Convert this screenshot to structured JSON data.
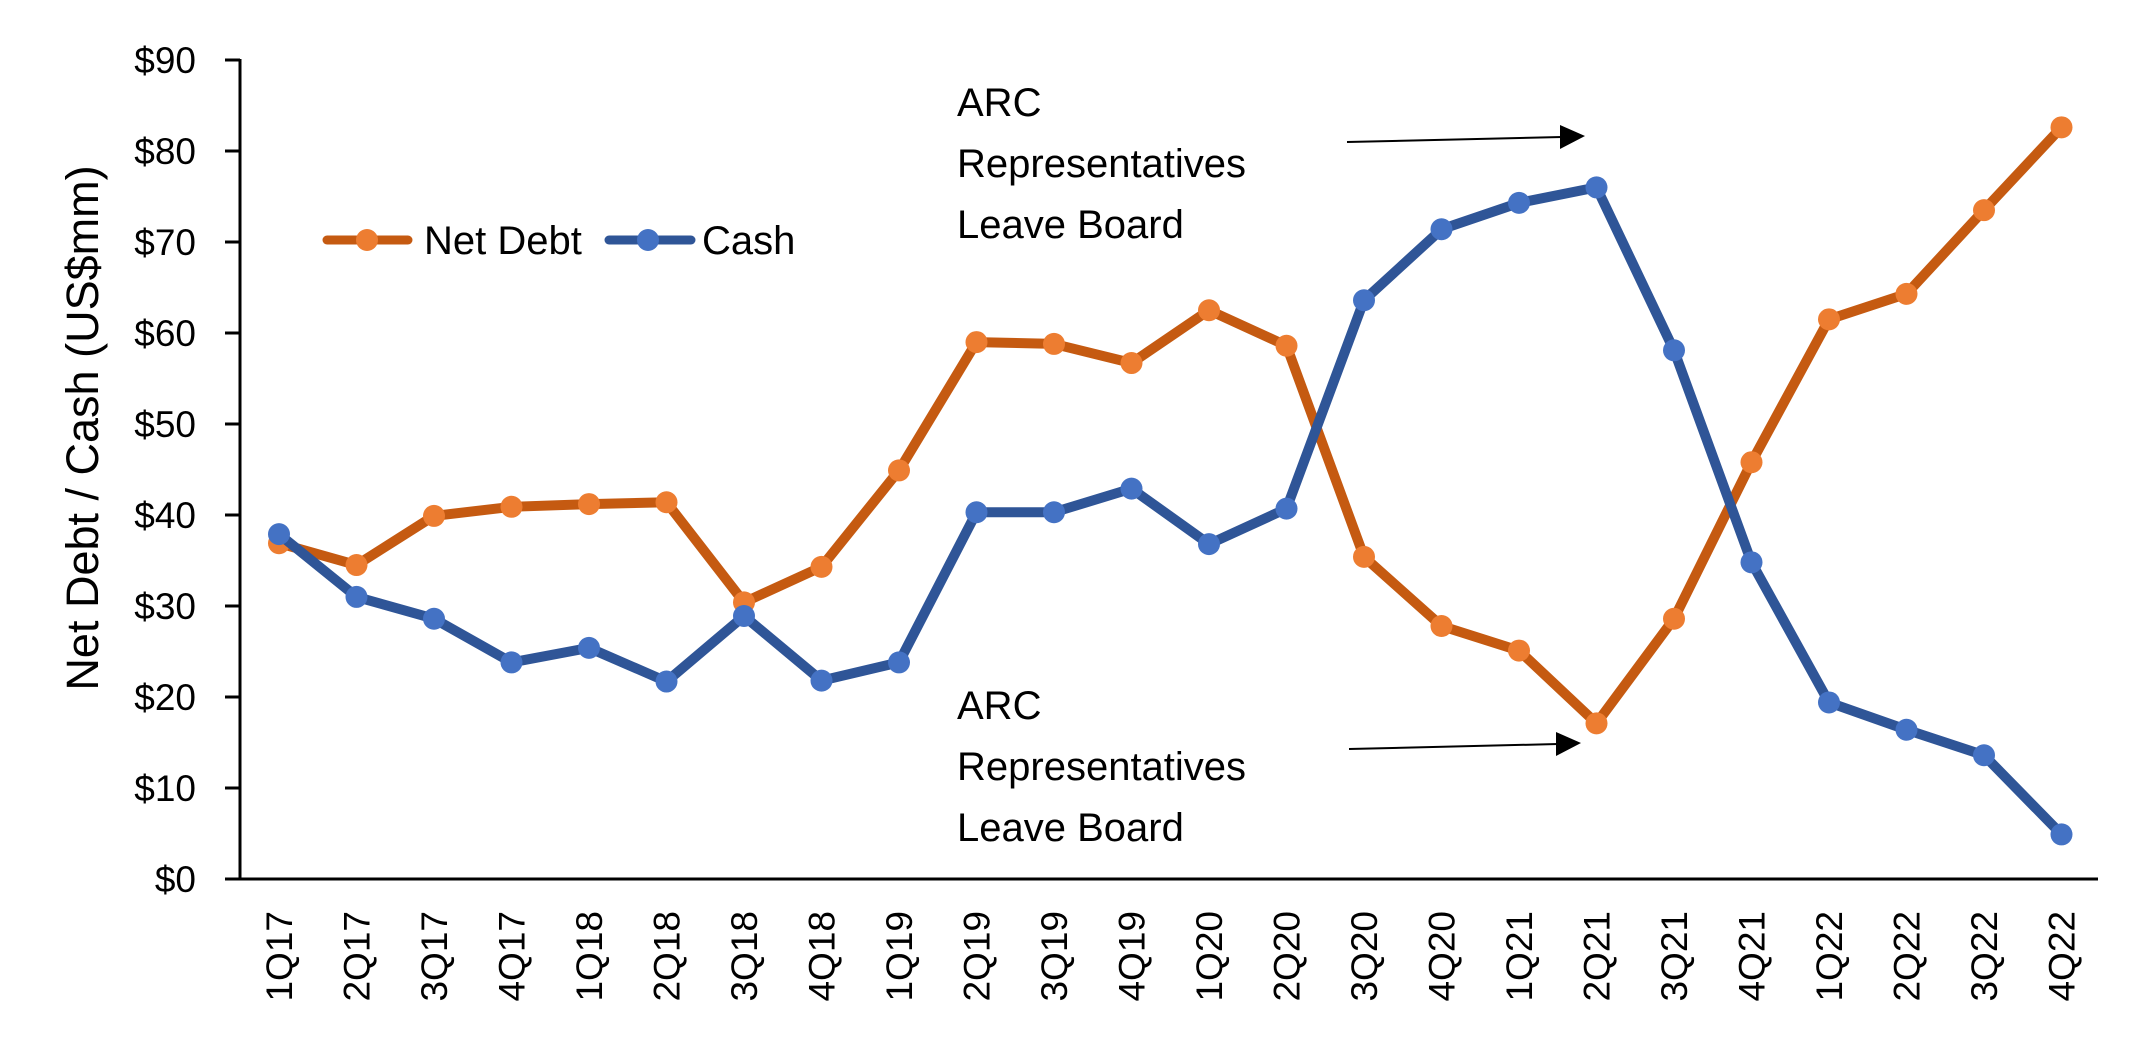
{
  "chart_data": {
    "type": "line",
    "title": "",
    "xlabel": "",
    "ylabel": "Net Debt / Cash (US$mm)",
    "ylim": [
      0,
      90
    ],
    "yticks": [
      "$0",
      "$10",
      "$20",
      "$30",
      "$40",
      "$50",
      "$60",
      "$70",
      "$80",
      "$90"
    ],
    "grid": false,
    "legend_position": "upper-left",
    "categories": [
      "1Q17",
      "2Q17",
      "3Q17",
      "4Q17",
      "1Q18",
      "2Q18",
      "3Q18",
      "4Q18",
      "1Q19",
      "2Q19",
      "3Q19",
      "4Q19",
      "1Q20",
      "2Q20",
      "3Q20",
      "4Q20",
      "1Q21",
      "2Q21",
      "3Q21",
      "4Q21",
      "1Q22",
      "2Q22",
      "3Q22",
      "4Q22"
    ],
    "series": [
      {
        "name": "Net Debt",
        "line_color": "#C55A11",
        "marker_color": "#ED7D31",
        "values": [
          36.9,
          34.5,
          39.9,
          40.9,
          41.2,
          41.4,
          30.4,
          34.3,
          44.9,
          59.0,
          58.8,
          56.7,
          62.5,
          58.6,
          35.4,
          27.8,
          25.1,
          17.1,
          28.6,
          45.8,
          61.5,
          64.3,
          73.5,
          82.6
        ]
      },
      {
        "name": "Cash",
        "line_color": "#2F5597",
        "marker_color": "#4472C4",
        "values": [
          37.9,
          31.0,
          28.6,
          23.8,
          25.4,
          21.7,
          28.9,
          21.8,
          23.8,
          40.3,
          40.3,
          42.9,
          36.8,
          40.7,
          63.6,
          71.4,
          74.3,
          76.0,
          58.1,
          34.8,
          19.4,
          16.4,
          13.6,
          4.9
        ]
      }
    ],
    "annotations": [
      {
        "lines": [
          "ARC",
          "Representatives",
          "Leave Board"
        ],
        "points_to": "2Q21",
        "series": "Cash"
      },
      {
        "lines": [
          "ARC",
          "Representatives",
          "Leave Board"
        ],
        "points_to": "2Q21",
        "series": "Net Debt"
      }
    ]
  }
}
